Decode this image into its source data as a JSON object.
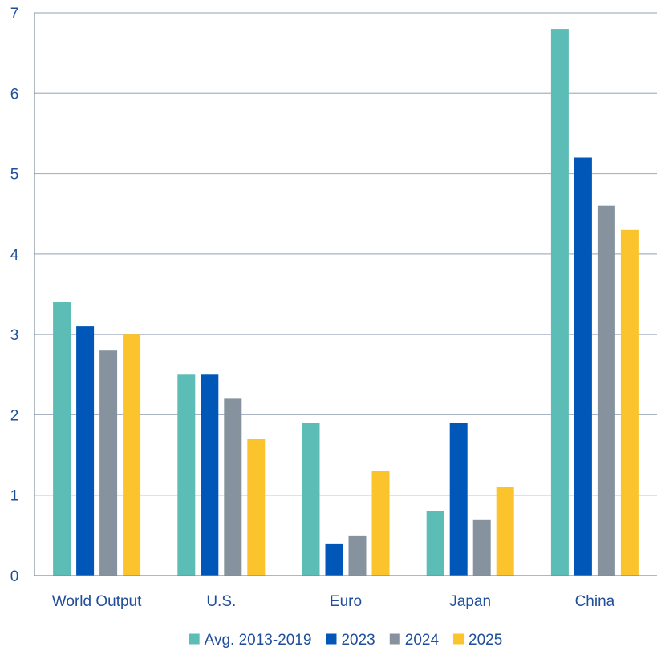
{
  "chart_data": {
    "type": "bar",
    "title": "",
    "xlabel": "",
    "ylabel": "",
    "categories": [
      "World Output",
      "U.S.",
      "Euro",
      "Japan",
      "China"
    ],
    "series": [
      {
        "name": "Avg. 2013-2019",
        "color": "#5BBDB5",
        "values": [
          3.4,
          2.5,
          1.9,
          0.8,
          6.8
        ]
      },
      {
        "name": "2023",
        "color": "#0057B8",
        "values": [
          3.1,
          2.5,
          0.4,
          1.9,
          5.2
        ]
      },
      {
        "name": "2024",
        "color": "#86939E",
        "values": [
          2.8,
          2.2,
          0.5,
          0.7,
          4.6
        ]
      },
      {
        "name": "2025",
        "color": "#FBC42D",
        "values": [
          3.0,
          1.7,
          1.3,
          1.1,
          4.3
        ]
      }
    ],
    "ylim": [
      0,
      7
    ],
    "yticks": [
      "0",
      "1",
      "2",
      "3",
      "4",
      "5",
      "6",
      "7"
    ],
    "grid": true,
    "legend_position": "bottom",
    "colors": {
      "axis_text": "#1F4E9A",
      "grid": "#A9B4C2",
      "axis_line": "#7F8C99"
    }
  }
}
